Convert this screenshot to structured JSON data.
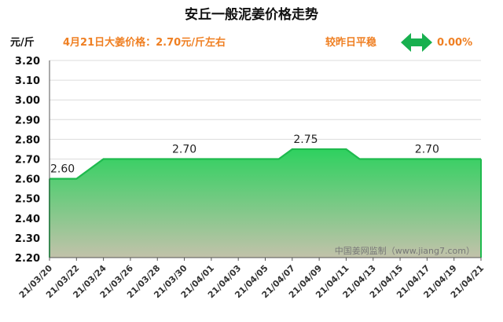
{
  "chart_data": {
    "type": "area",
    "title": "安丘一般泥姜价格走势",
    "unit_label": "元/斤",
    "price_note": "4月21日大姜价格：2.70元/斤左右",
    "change_label": "较昨日平稳",
    "change_value": "0.00%",
    "watermark": "中国姜网监制（www.jiang7.com）",
    "ylim": [
      2.2,
      3.2
    ],
    "y_ticks": [
      "2.20",
      "2.30",
      "2.40",
      "2.50",
      "2.60",
      "2.70",
      "2.80",
      "2.90",
      "3.00",
      "3.10",
      "3.20"
    ],
    "x_ticks": [
      "21/03/20",
      "21/03/22",
      "21/03/24",
      "21/03/26",
      "21/03/28",
      "21/03/30",
      "21/04/01",
      "21/04/03",
      "21/04/05",
      "21/04/07",
      "21/04/09",
      "21/04/11",
      "21/04/13",
      "21/04/15",
      "21/04/17",
      "21/04/19",
      "21/04/21"
    ],
    "series": [
      {
        "x": [
          "21/03/20",
          "21/03/21",
          "21/03/22",
          "21/03/23",
          "21/03/24",
          "21/03/25",
          "21/03/26",
          "21/03/27",
          "21/03/28",
          "21/03/29",
          "21/03/30",
          "21/03/31",
          "21/04/01",
          "21/04/02",
          "21/04/03",
          "21/04/04",
          "21/04/05",
          "21/04/06",
          "21/04/07",
          "21/04/08",
          "21/04/09",
          "21/04/10",
          "21/04/11",
          "21/04/12",
          "21/04/13",
          "21/04/14",
          "21/04/15",
          "21/04/16",
          "21/04/17",
          "21/04/18",
          "21/04/19",
          "21/04/20",
          "21/04/21"
        ],
        "values": [
          2.6,
          2.6,
          2.6,
          2.65,
          2.7,
          2.7,
          2.7,
          2.7,
          2.7,
          2.7,
          2.7,
          2.7,
          2.7,
          2.7,
          2.7,
          2.7,
          2.7,
          2.7,
          2.75,
          2.75,
          2.75,
          2.75,
          2.75,
          2.7,
          2.7,
          2.7,
          2.7,
          2.7,
          2.7,
          2.7,
          2.7,
          2.7,
          2.7
        ]
      }
    ],
    "data_labels": [
      {
        "x": "21/03/20",
        "text": "2.60"
      },
      {
        "x": "21/03/30",
        "text": "2.70"
      },
      {
        "x": "21/04/08",
        "text": "2.75"
      },
      {
        "x": "21/04/17",
        "text": "2.70"
      }
    ],
    "colors": {
      "line": "#1fba4e",
      "fill_top": "#2ed15f",
      "fill_bottom": "#c2c2aa",
      "arrow": "#18b04f",
      "accent_text": "#ef7f22"
    }
  }
}
